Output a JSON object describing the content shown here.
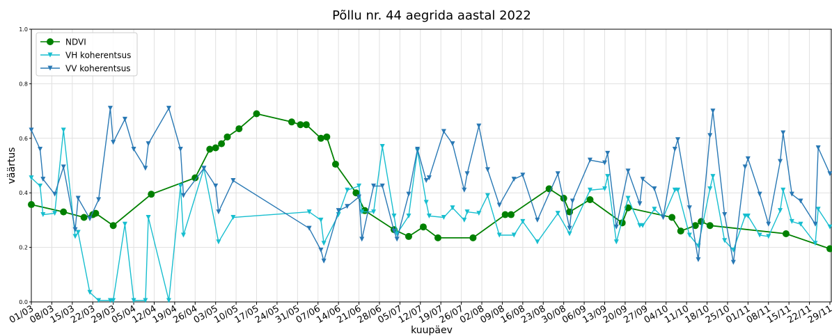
{
  "chart_data": {
    "type": "line",
    "title": "Põllu nr. 44 aegrida aastal 2022",
    "xlabel": "kuupäev",
    "ylabel": "väärtus",
    "xlim": [
      "01/03",
      "29/11"
    ],
    "xticks": [
      "01/03",
      "08/03",
      "15/03",
      "22/03",
      "29/03",
      "05/04",
      "12/04",
      "19/04",
      "26/04",
      "03/05",
      "10/05",
      "17/05",
      "24/05",
      "31/05",
      "07/06",
      "14/06",
      "21/06",
      "28/06",
      "05/07",
      "12/07",
      "19/07",
      "26/07",
      "02/08",
      "09/08",
      "16/08",
      "23/08",
      "30/08",
      "06/09",
      "13/09",
      "20/09",
      "27/09",
      "04/10",
      "11/10",
      "18/10",
      "25/10",
      "01/11",
      "08/11",
      "15/11",
      "22/11",
      "29/11"
    ],
    "ylim": [
      0,
      1
    ],
    "yticks": [
      {
        "value": 0,
        "label": "0.0"
      },
      {
        "value": 0.2,
        "label": "0.2"
      },
      {
        "value": 0.4,
        "label": "0.4"
      },
      {
        "value": 0.6,
        "label": "0.6"
      },
      {
        "value": 0.8,
        "label": "0.8"
      },
      {
        "value": 1,
        "label": "1.0"
      }
    ],
    "grid": true,
    "legend": "upper left",
    "series": [
      {
        "name": "NDVI",
        "color": "#008000",
        "marker": "circle",
        "x": [
          "01/03",
          "12/03",
          "19/03",
          "22/03",
          "23/03",
          "29/03",
          "11/04",
          "26/04",
          "01/05",
          "03/05",
          "05/05",
          "07/05",
          "11/05",
          "17/05",
          "29/05",
          "01/06",
          "03/06",
          "08/06",
          "10/06",
          "13/06",
          "20/06",
          "23/06",
          "03/07",
          "08/07",
          "13/07",
          "18/07",
          "30/07",
          "10/08",
          "12/08",
          "25/08",
          "30/08",
          "01/09",
          "08/09",
          "19/09",
          "21/09",
          "06/10",
          "09/10",
          "14/10",
          "16/10",
          "19/10",
          "14/11",
          "29/11"
        ],
        "values": [
          0.357,
          0.33,
          0.31,
          0.32,
          0.325,
          0.28,
          0.395,
          0.455,
          0.56,
          0.565,
          0.58,
          0.605,
          0.635,
          0.69,
          0.66,
          0.65,
          0.65,
          0.6,
          0.605,
          0.505,
          0.4,
          0.335,
          0.265,
          0.24,
          0.275,
          0.235,
          0.235,
          0.32,
          0.32,
          0.415,
          0.38,
          0.33,
          0.375,
          0.29,
          0.345,
          0.31,
          0.26,
          0.28,
          0.295,
          0.28,
          0.25,
          0.195
        ]
      },
      {
        "name": "VH koherentsus",
        "color": "#17becf",
        "marker": "triangle-down",
        "x": [
          "01/03",
          "04/03",
          "05/03",
          "09/03",
          "12/03",
          "16/03",
          "17/03",
          "21/03",
          "24/03",
          "28/03",
          "29/03",
          "02/04",
          "05/04",
          "09/04",
          "10/04",
          "17/04",
          "21/04",
          "22/04",
          "29/04",
          "04/05",
          "09/05",
          "04/06",
          "08/06",
          "09/06",
          "14/06",
          "17/06",
          "21/06",
          "22/06",
          "26/06",
          "29/06",
          "03/07",
          "04/07",
          "08/07",
          "11/07",
          "14/07",
          "15/07",
          "20/07",
          "23/07",
          "27/07",
          "28/07",
          "01/08",
          "04/08",
          "08/08",
          "13/08",
          "16/08",
          "21/08",
          "28/08",
          "01/09",
          "08/09",
          "13/09",
          "14/09",
          "17/09",
          "21/09",
          "25/09",
          "26/09",
          "30/09",
          "03/10",
          "07/10",
          "08/10",
          "12/10",
          "15/10",
          "19/10",
          "20/10",
          "24/10",
          "27/10",
          "31/10",
          "01/11",
          "05/11",
          "08/11",
          "12/11",
          "13/11",
          "16/11",
          "19/11",
          "24/11",
          "25/11",
          "29/11"
        ],
        "values": [
          0.455,
          0.425,
          0.32,
          0.325,
          0.63,
          0.24,
          0.255,
          0.035,
          0.005,
          0.005,
          0.005,
          0.285,
          0.005,
          0.005,
          0.31,
          0.005,
          0.425,
          0.245,
          0.49,
          0.22,
          0.31,
          0.33,
          0.3,
          0.215,
          0.32,
          0.41,
          0.425,
          0.33,
          0.33,
          0.57,
          0.315,
          0.25,
          0.315,
          0.555,
          0.365,
          0.315,
          0.31,
          0.345,
          0.3,
          0.33,
          0.325,
          0.39,
          0.245,
          0.245,
          0.295,
          0.22,
          0.325,
          0.25,
          0.41,
          0.415,
          0.46,
          0.22,
          0.38,
          0.28,
          0.28,
          0.34,
          0.31,
          0.41,
          0.41,
          0.245,
          0.205,
          0.415,
          0.46,
          0.225,
          0.19,
          0.315,
          0.315,
          0.245,
          0.24,
          0.335,
          0.41,
          0.295,
          0.285,
          0.215,
          0.34,
          0.275
        ]
      },
      {
        "name": "VV koherentsus",
        "color": "#2878b4",
        "marker": "triangle-down",
        "x": [
          "01/03",
          "04/03",
          "05/03",
          "09/03",
          "12/03",
          "16/03",
          "17/03",
          "21/03",
          "24/03",
          "28/03",
          "29/03",
          "02/04",
          "05/04",
          "09/04",
          "10/04",
          "17/04",
          "21/04",
          "22/04",
          "29/04",
          "03/05",
          "04/05",
          "09/05",
          "04/06",
          "08/06",
          "09/06",
          "14/06",
          "17/06",
          "21/06",
          "22/06",
          "26/06",
          "29/06",
          "03/07",
          "04/07",
          "08/07",
          "11/07",
          "14/07",
          "15/07",
          "20/07",
          "23/07",
          "27/07",
          "28/07",
          "01/08",
          "04/08",
          "08/08",
          "13/08",
          "16/08",
          "21/08",
          "28/08",
          "01/09",
          "02/09",
          "08/09",
          "13/09",
          "14/09",
          "17/09",
          "21/09",
          "25/09",
          "26/09",
          "30/09",
          "03/10",
          "07/10",
          "08/10",
          "12/10",
          "15/10",
          "19/10",
          "20/10",
          "24/10",
          "27/10",
          "31/10",
          "01/11",
          "05/11",
          "08/11",
          "12/11",
          "13/11",
          "16/11",
          "19/11",
          "24/11",
          "25/11",
          "29/11"
        ],
        "values": [
          0.63,
          0.56,
          0.45,
          0.395,
          0.495,
          0.265,
          0.38,
          0.305,
          0.375,
          0.71,
          0.585,
          0.67,
          0.56,
          0.49,
          0.58,
          0.71,
          0.56,
          0.39,
          0.49,
          0.425,
          0.33,
          0.445,
          0.27,
          0.19,
          0.15,
          0.335,
          0.35,
          0.385,
          0.23,
          0.425,
          0.425,
          0.26,
          0.23,
          0.395,
          0.56,
          0.445,
          0.455,
          0.625,
          0.58,
          0.41,
          0.47,
          0.645,
          0.485,
          0.355,
          0.45,
          0.465,
          0.3,
          0.47,
          0.27,
          0.37,
          0.52,
          0.51,
          0.545,
          0.275,
          0.48,
          0.36,
          0.45,
          0.415,
          0.31,
          0.56,
          0.595,
          0.345,
          0.155,
          0.61,
          0.7,
          0.32,
          0.145,
          0.495,
          0.525,
          0.395,
          0.285,
          0.515,
          0.62,
          0.395,
          0.37,
          0.285,
          0.565,
          0.47
        ]
      }
    ]
  }
}
